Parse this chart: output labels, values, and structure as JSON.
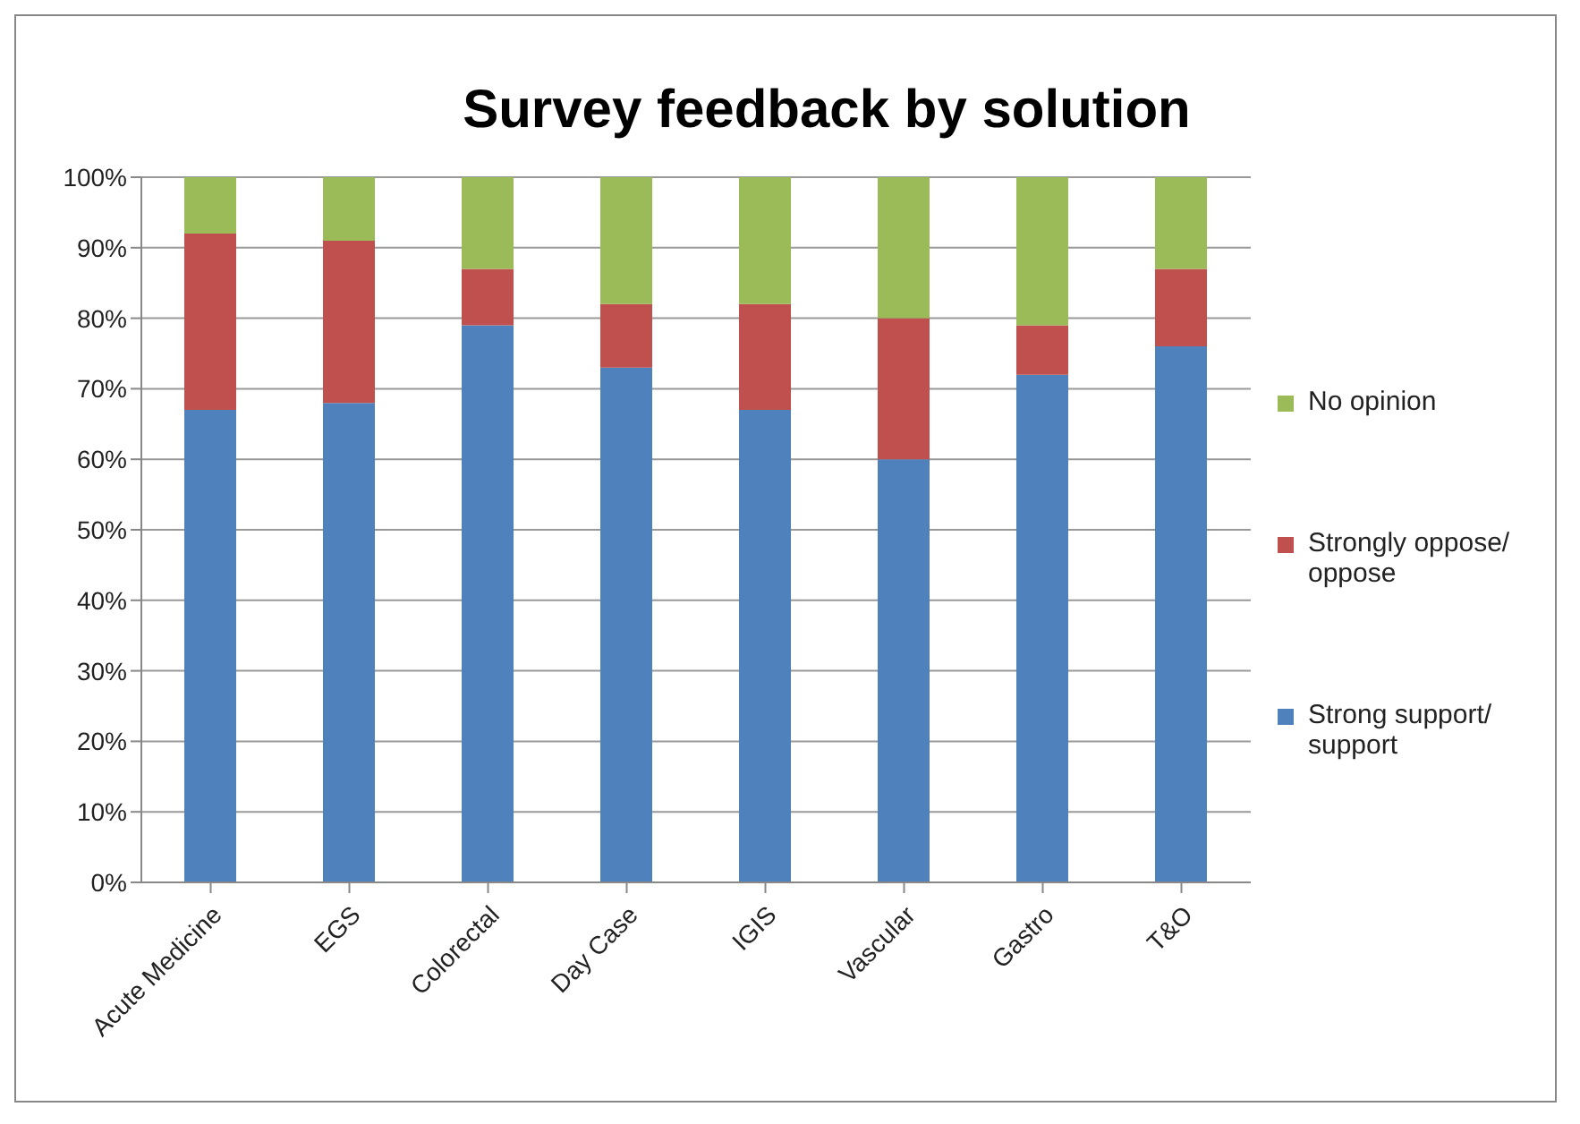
{
  "chart_data": {
    "type": "bar",
    "title": "Survey feedback by solution",
    "stacked": true,
    "categories": [
      "Acute Medicine",
      "EGS",
      "Colorectal",
      "Day Case",
      "IGIS",
      "Vascular",
      "Gastro",
      "T&O"
    ],
    "series": [
      {
        "name": "Strong support/ support",
        "color": "#4f81bd",
        "values": [
          67,
          68,
          79,
          73,
          67,
          60,
          72,
          76
        ]
      },
      {
        "name": "Strongly oppose/ oppose",
        "color": "#c0504d",
        "values": [
          25,
          23,
          8,
          9,
          15,
          20,
          7,
          11
        ]
      },
      {
        "name": "No opinion",
        "color": "#9bbb59",
        "values": [
          8,
          9,
          13,
          18,
          18,
          20,
          21,
          13
        ]
      }
    ],
    "ylim": [
      0,
      100
    ],
    "yticks": [
      {
        "value": 0,
        "label": "0%"
      },
      {
        "value": 10,
        "label": "10%"
      },
      {
        "value": 20,
        "label": "20%"
      },
      {
        "value": 30,
        "label": "30%"
      },
      {
        "value": 40,
        "label": "40%"
      },
      {
        "value": 50,
        "label": "50%"
      },
      {
        "value": 60,
        "label": "60%"
      },
      {
        "value": 70,
        "label": "70%"
      },
      {
        "value": 80,
        "label": "80%"
      },
      {
        "value": 90,
        "label": "90%"
      },
      {
        "value": 100,
        "label": "100%"
      }
    ],
    "grid": "y",
    "legend": "right"
  }
}
